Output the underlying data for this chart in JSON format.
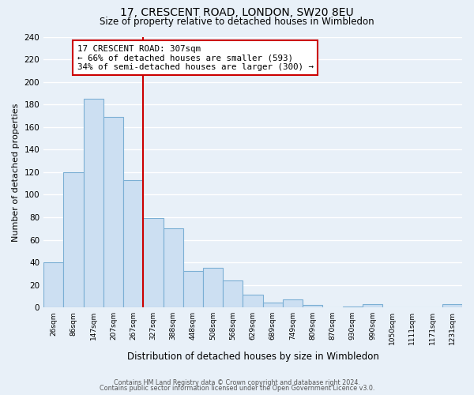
{
  "title": "17, CRESCENT ROAD, LONDON, SW20 8EU",
  "subtitle": "Size of property relative to detached houses in Wimbledon",
  "xlabel": "Distribution of detached houses by size in Wimbledon",
  "ylabel": "Number of detached properties",
  "bar_labels": [
    "26sqm",
    "86sqm",
    "147sqm",
    "207sqm",
    "267sqm",
    "327sqm",
    "388sqm",
    "448sqm",
    "508sqm",
    "568sqm",
    "629sqm",
    "689sqm",
    "749sqm",
    "809sqm",
    "870sqm",
    "930sqm",
    "990sqm",
    "1050sqm",
    "1111sqm",
    "1171sqm",
    "1231sqm"
  ],
  "bar_values": [
    40,
    120,
    185,
    169,
    113,
    79,
    70,
    32,
    35,
    24,
    11,
    4,
    7,
    2,
    0,
    1,
    3,
    0,
    0,
    0,
    3
  ],
  "bar_color": "#ccdff2",
  "bar_edge_color": "#7bafd4",
  "background_color": "#e8f0f8",
  "grid_color": "#ffffff",
  "annotation_title": "17 CRESCENT ROAD: 307sqm",
  "annotation_line1": "← 66% of detached houses are smaller (593)",
  "annotation_line2": "34% of semi-detached houses are larger (300) →",
  "annotation_box_color": "#ffffff",
  "annotation_box_edge": "#cc0000",
  "red_line_color": "#cc0000",
  "ylim": [
    0,
    240
  ],
  "yticks": [
    0,
    20,
    40,
    60,
    80,
    100,
    120,
    140,
    160,
    180,
    200,
    220,
    240
  ],
  "footer1": "Contains HM Land Registry data © Crown copyright and database right 2024.",
  "footer2": "Contains public sector information licensed under the Open Government Licence v3.0."
}
